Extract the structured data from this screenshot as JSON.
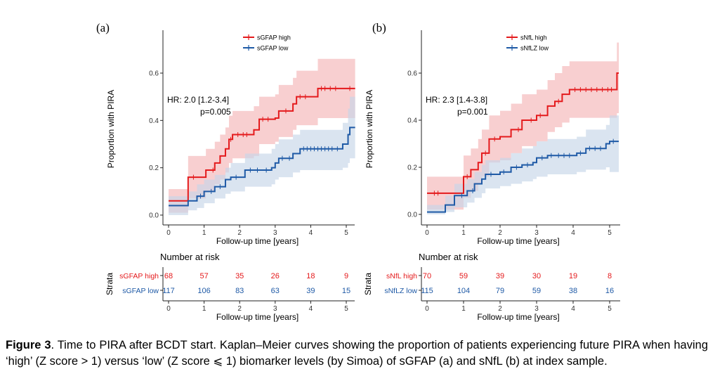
{
  "caption": {
    "label": "Figure 3",
    "text": ". Time to PIRA after BCDT start. Kaplan–Meier curves showing the proportion of patients experiencing future PIRA when having ‘high’ (Z score > 1) versus ‘low’ (Z score ⩽ 1) biomarker levels (by Simoa) of sGFAP (a) and sNfL (b) at index sample."
  },
  "chart_data": [
    {
      "panel": "(a)",
      "type": "line",
      "subtype": "kaplan-meier step curve with confidence bands",
      "xlabel": "Follow-up time [years]",
      "ylabel": "Proportion with PIRA",
      "xlim": [
        -0.3,
        5.25
      ],
      "ylim": [
        -0.02,
        0.66
      ],
      "x_ticks": [
        0,
        1,
        2,
        3,
        4,
        5
      ],
      "y_ticks": [
        0.0,
        0.2,
        0.4,
        0.6
      ],
      "y_tick_labels": [
        "0.0",
        "0.2",
        "0.4",
        "0.6"
      ],
      "legend_position": "top-center",
      "annotation": {
        "hr": "HR: 2.0 [1.2-3.4]",
        "p": "p=0.005"
      },
      "series": [
        {
          "name": "sGFAP high",
          "color": "#e41a1c",
          "band_color": "#f4b6b7",
          "steps": [
            [
              0,
              0.06
            ],
            [
              0.55,
              0.16
            ],
            [
              1.05,
              0.19
            ],
            [
              1.3,
              0.22
            ],
            [
              1.45,
              0.25
            ],
            [
              1.6,
              0.28
            ],
            [
              1.7,
              0.32
            ],
            [
              1.8,
              0.34
            ],
            [
              2.4,
              0.36
            ],
            [
              2.55,
              0.405
            ],
            [
              3.0,
              0.41
            ],
            [
              3.1,
              0.44
            ],
            [
              3.5,
              0.47
            ],
            [
              3.6,
              0.5
            ],
            [
              4.2,
              0.535
            ],
            [
              5.25,
              0.535
            ]
          ],
          "ci_low": [
            [
              0,
              0.01
            ],
            [
              0.55,
              0.07
            ],
            [
              1.05,
              0.1
            ],
            [
              1.3,
              0.13
            ],
            [
              1.45,
              0.15
            ],
            [
              1.6,
              0.18
            ],
            [
              1.7,
              0.22
            ],
            [
              1.8,
              0.24
            ],
            [
              2.4,
              0.25
            ],
            [
              2.55,
              0.3
            ],
            [
              3.0,
              0.31
            ],
            [
              3.1,
              0.33
            ],
            [
              3.5,
              0.36
            ],
            [
              3.6,
              0.38
            ],
            [
              4.2,
              0.41
            ],
            [
              5.25,
              0.41
            ]
          ],
          "ci_high": [
            [
              0,
              0.11
            ],
            [
              0.55,
              0.25
            ],
            [
              1.05,
              0.28
            ],
            [
              1.3,
              0.31
            ],
            [
              1.45,
              0.34
            ],
            [
              1.6,
              0.37
            ],
            [
              1.7,
              0.42
            ],
            [
              1.8,
              0.44
            ],
            [
              2.4,
              0.46
            ],
            [
              2.55,
              0.5
            ],
            [
              3.0,
              0.51
            ],
            [
              3.1,
              0.55
            ],
            [
              3.5,
              0.58
            ],
            [
              3.6,
              0.61
            ],
            [
              4.2,
              0.66
            ],
            [
              5.25,
              0.66
            ]
          ],
          "censor_x": [
            0.7,
            1.25,
            1.75,
            1.95,
            2.1,
            2.2,
            2.65,
            2.8,
            3.3,
            3.7,
            3.85,
            4.3,
            4.4,
            4.55,
            4.7,
            5.1
          ]
        },
        {
          "name": "sGFAP low",
          "color": "#1f5aa6",
          "band_color": "#c6d5e8",
          "steps": [
            [
              0,
              0.04
            ],
            [
              0.55,
              0.06
            ],
            [
              0.8,
              0.08
            ],
            [
              1.0,
              0.1
            ],
            [
              1.3,
              0.12
            ],
            [
              1.6,
              0.15
            ],
            [
              1.75,
              0.16
            ],
            [
              2.15,
              0.19
            ],
            [
              2.9,
              0.2
            ],
            [
              3.0,
              0.22
            ],
            [
              3.1,
              0.24
            ],
            [
              3.5,
              0.26
            ],
            [
              3.7,
              0.28
            ],
            [
              4.9,
              0.3
            ],
            [
              5.05,
              0.34
            ],
            [
              5.1,
              0.37
            ],
            [
              5.25,
              0.37
            ]
          ],
          "ci_low": [
            [
              0,
              0.0
            ],
            [
              0.55,
              0.02
            ],
            [
              0.8,
              0.03
            ],
            [
              1.0,
              0.05
            ],
            [
              1.3,
              0.07
            ],
            [
              1.6,
              0.09
            ],
            [
              1.75,
              0.1
            ],
            [
              2.15,
              0.12
            ],
            [
              2.9,
              0.13
            ],
            [
              3.0,
              0.15
            ],
            [
              3.1,
              0.16
            ],
            [
              3.5,
              0.18
            ],
            [
              3.7,
              0.19
            ],
            [
              4.9,
              0.2
            ],
            [
              5.05,
              0.22
            ],
            [
              5.1,
              0.24
            ],
            [
              5.25,
              0.24
            ]
          ],
          "ci_high": [
            [
              0,
              0.08
            ],
            [
              0.55,
              0.1
            ],
            [
              0.8,
              0.13
            ],
            [
              1.0,
              0.15
            ],
            [
              1.3,
              0.17
            ],
            [
              1.6,
              0.2
            ],
            [
              1.75,
              0.22
            ],
            [
              2.15,
              0.26
            ],
            [
              2.9,
              0.28
            ],
            [
              3.0,
              0.3
            ],
            [
              3.1,
              0.32
            ],
            [
              3.5,
              0.34
            ],
            [
              3.7,
              0.36
            ],
            [
              4.9,
              0.39
            ],
            [
              5.05,
              0.45
            ],
            [
              5.1,
              0.5
            ],
            [
              5.25,
              0.5
            ]
          ],
          "censor_x": [
            0.9,
            1.2,
            1.45,
            1.9,
            2.3,
            2.5,
            2.75,
            3.2,
            3.4,
            3.8,
            3.9,
            4.0,
            4.1,
            4.2,
            4.3,
            4.4,
            4.5,
            4.6,
            4.75
          ]
        }
      ],
      "risk_table": {
        "title": "Number at risk",
        "strata_label": "Strata",
        "times": [
          0,
          1,
          2,
          3,
          4,
          5
        ],
        "rows": [
          {
            "label": "sGFAP high",
            "color": "#e41a1c",
            "values": [
              "68",
              "57",
              "35",
              "26",
              "18",
              "9"
            ]
          },
          {
            "label": "sGFAP low",
            "color": "#1f5aa6",
            "values": [
              "117",
              "106",
              "83",
              "63",
              "39",
              "15"
            ]
          }
        ]
      }
    },
    {
      "panel": "(b)",
      "type": "line",
      "subtype": "kaplan-meier step curve with confidence bands",
      "xlabel": "Follow-up time [years]",
      "ylabel": "Proportion with PIRA",
      "xlim": [
        -0.3,
        5.25
      ],
      "ylim": [
        -0.02,
        0.73
      ],
      "x_ticks": [
        0,
        1,
        2,
        3,
        4,
        5
      ],
      "y_ticks": [
        0.0,
        0.2,
        0.4,
        0.6
      ],
      "y_tick_labels": [
        "0.0",
        "0.2",
        "0.4",
        "0.6"
      ],
      "legend_position": "top-center",
      "annotation": {
        "hr": "HR: 2.3 [1.4-3.8]",
        "p": "p=0.001"
      },
      "series": [
        {
          "name": "sNfL high",
          "color": "#e41a1c",
          "band_color": "#f4b6b7",
          "steps": [
            [
              0,
              0.09
            ],
            [
              0.5,
              0.09
            ],
            [
              1.0,
              0.16
            ],
            [
              1.2,
              0.19
            ],
            [
              1.4,
              0.22
            ],
            [
              1.5,
              0.26
            ],
            [
              1.7,
              0.32
            ],
            [
              2.0,
              0.33
            ],
            [
              2.3,
              0.36
            ],
            [
              2.6,
              0.4
            ],
            [
              3.0,
              0.42
            ],
            [
              3.3,
              0.46
            ],
            [
              3.5,
              0.48
            ],
            [
              3.7,
              0.51
            ],
            [
              3.9,
              0.53
            ],
            [
              5.2,
              0.6
            ],
            [
              5.25,
              0.6
            ]
          ],
          "ci_low": [
            [
              0,
              0.02
            ],
            [
              0.5,
              0.02
            ],
            [
              1.0,
              0.07
            ],
            [
              1.2,
              0.1
            ],
            [
              1.4,
              0.13
            ],
            [
              1.5,
              0.16
            ],
            [
              1.7,
              0.22
            ],
            [
              2.0,
              0.23
            ],
            [
              2.3,
              0.26
            ],
            [
              2.6,
              0.29
            ],
            [
              3.0,
              0.31
            ],
            [
              3.3,
              0.35
            ],
            [
              3.5,
              0.37
            ],
            [
              3.7,
              0.39
            ],
            [
              3.9,
              0.41
            ],
            [
              5.2,
              0.43
            ],
            [
              5.25,
              0.43
            ]
          ],
          "ci_high": [
            [
              0,
              0.16
            ],
            [
              0.5,
              0.16
            ],
            [
              1.0,
              0.25
            ],
            [
              1.2,
              0.28
            ],
            [
              1.4,
              0.32
            ],
            [
              1.5,
              0.36
            ],
            [
              1.7,
              0.42
            ],
            [
              2.0,
              0.44
            ],
            [
              2.3,
              0.47
            ],
            [
              2.6,
              0.51
            ],
            [
              3.0,
              0.53
            ],
            [
              3.3,
              0.57
            ],
            [
              3.5,
              0.6
            ],
            [
              3.7,
              0.63
            ],
            [
              3.9,
              0.65
            ],
            [
              5.2,
              0.73
            ],
            [
              5.25,
              0.73
            ]
          ],
          "censor_x": [
            0.2,
            0.3,
            1.1,
            1.6,
            1.85,
            2.5,
            2.85,
            3.1,
            3.6,
            4.05,
            4.2,
            4.35,
            4.5,
            4.65,
            4.8,
            4.95,
            5.05
          ]
        },
        {
          "name": "sNfLZ low",
          "color": "#1f5aa6",
          "band_color": "#c6d5e8",
          "steps": [
            [
              0,
              0.01
            ],
            [
              0.5,
              0.04
            ],
            [
              0.75,
              0.08
            ],
            [
              1.1,
              0.1
            ],
            [
              1.3,
              0.13
            ],
            [
              1.5,
              0.15
            ],
            [
              1.6,
              0.17
            ],
            [
              2.0,
              0.18
            ],
            [
              2.3,
              0.2
            ],
            [
              2.6,
              0.21
            ],
            [
              2.9,
              0.22
            ],
            [
              3.0,
              0.24
            ],
            [
              3.3,
              0.25
            ],
            [
              4.1,
              0.26
            ],
            [
              4.35,
              0.28
            ],
            [
              4.9,
              0.3
            ],
            [
              5.0,
              0.31
            ],
            [
              5.25,
              0.31
            ]
          ],
          "ci_low": [
            [
              0,
              0.0
            ],
            [
              0.5,
              0.01
            ],
            [
              0.75,
              0.03
            ],
            [
              1.1,
              0.05
            ],
            [
              1.3,
              0.07
            ],
            [
              1.5,
              0.09
            ],
            [
              1.6,
              0.11
            ],
            [
              2.0,
              0.12
            ],
            [
              2.3,
              0.13
            ],
            [
              2.6,
              0.14
            ],
            [
              2.9,
              0.15
            ],
            [
              3.0,
              0.16
            ],
            [
              3.3,
              0.17
            ],
            [
              4.1,
              0.18
            ],
            [
              4.35,
              0.19
            ],
            [
              4.9,
              0.2
            ],
            [
              5.0,
              0.18
            ],
            [
              5.25,
              0.18
            ]
          ],
          "ci_high": [
            [
              0,
              0.04
            ],
            [
              0.5,
              0.08
            ],
            [
              0.75,
              0.13
            ],
            [
              1.1,
              0.15
            ],
            [
              1.3,
              0.18
            ],
            [
              1.5,
              0.21
            ],
            [
              1.6,
              0.23
            ],
            [
              2.0,
              0.24
            ],
            [
              2.3,
              0.26
            ],
            [
              2.6,
              0.28
            ],
            [
              2.9,
              0.29
            ],
            [
              3.0,
              0.31
            ],
            [
              3.3,
              0.32
            ],
            [
              4.1,
              0.33
            ],
            [
              4.35,
              0.36
            ],
            [
              4.9,
              0.38
            ],
            [
              5.0,
              0.42
            ],
            [
              5.25,
              0.42
            ]
          ],
          "censor_x": [
            0.95,
            1.25,
            1.75,
            2.1,
            2.45,
            2.75,
            3.15,
            3.4,
            3.6,
            3.75,
            3.9,
            4.2,
            4.45,
            4.6,
            4.75,
            5.1
          ]
        }
      ],
      "risk_table": {
        "title": "Number at risk",
        "strata_label": "Strata",
        "times": [
          0,
          1,
          2,
          3,
          4,
          5
        ],
        "rows": [
          {
            "label": "sNfL high",
            "color": "#e41a1c",
            "values": [
              "70",
              "59",
              "39",
              "30",
              "19",
              "8"
            ]
          },
          {
            "label": "sNfLZ low",
            "color": "#1f5aa6",
            "values": [
              "115",
              "104",
              "79",
              "59",
              "38",
              "16"
            ]
          }
        ]
      }
    }
  ]
}
